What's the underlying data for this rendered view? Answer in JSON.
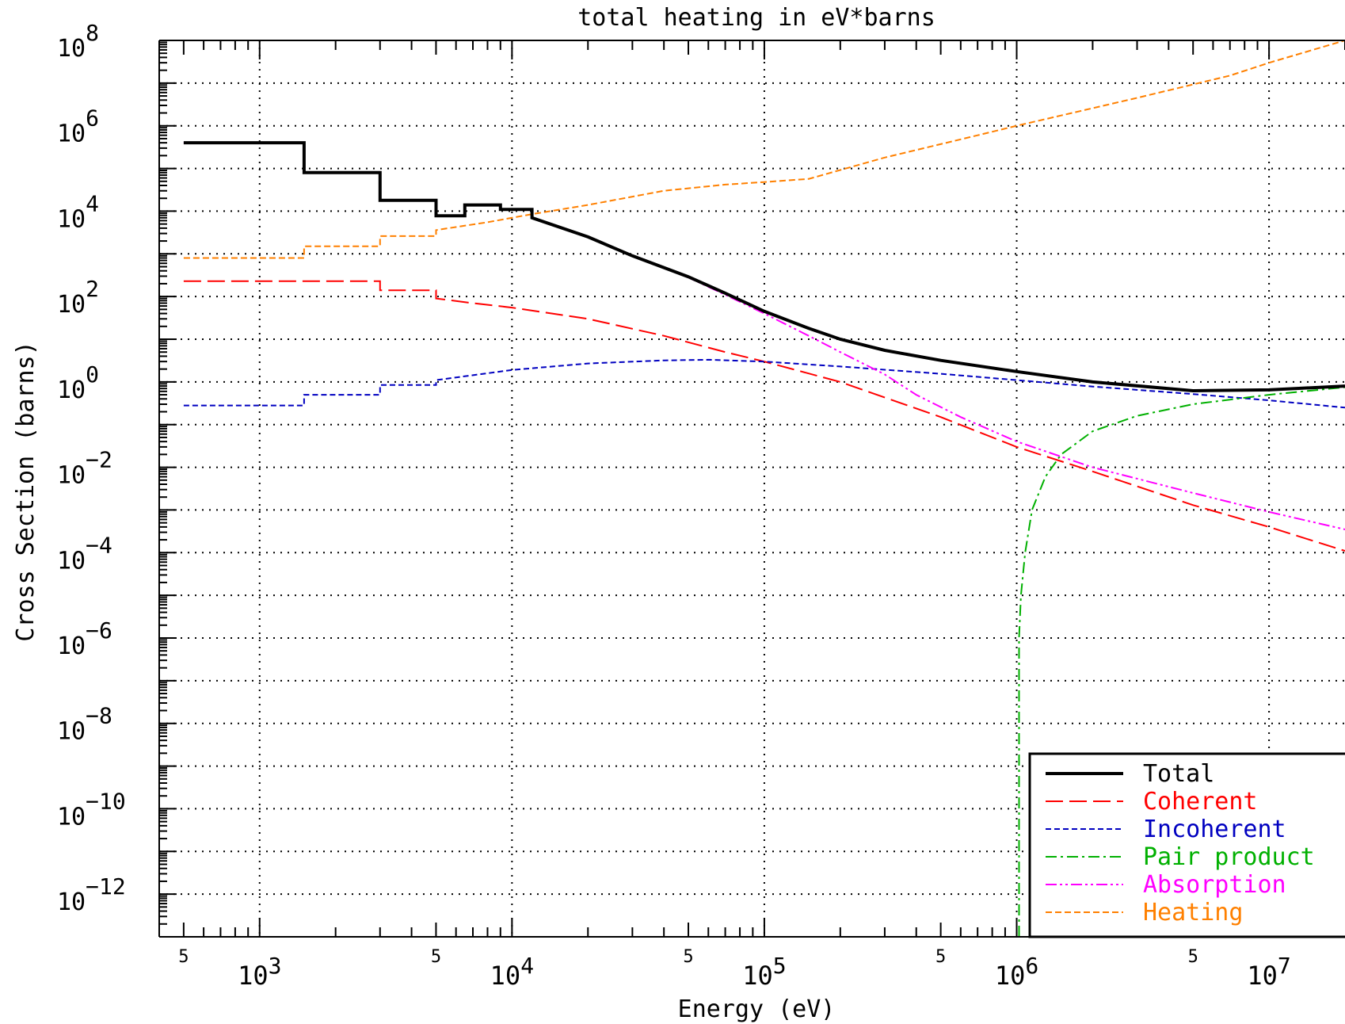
{
  "chart_data": {
    "type": "line",
    "title": "total heating in eV*barns",
    "xlabel": "Energy (eV)",
    "ylabel": "Cross Section (barns)",
    "x_scale": "log",
    "y_scale": "log",
    "xlim": [
      400,
      20000000
    ],
    "ylim": [
      1e-13,
      100000000.0
    ],
    "grid": true,
    "legend_position": "bottom-right",
    "x_tick_labels": [
      {
        "value": 500,
        "base": "5",
        "exp": ""
      },
      {
        "value": 1000,
        "base": "10",
        "exp": "3"
      },
      {
        "value": 5000,
        "base": "5",
        "exp": ""
      },
      {
        "value": 10000,
        "base": "10",
        "exp": "4"
      },
      {
        "value": 50000,
        "base": "5",
        "exp": ""
      },
      {
        "value": 100000,
        "base": "10",
        "exp": "5"
      },
      {
        "value": 500000,
        "base": "5",
        "exp": ""
      },
      {
        "value": 1000000,
        "base": "10",
        "exp": "6"
      },
      {
        "value": 5000000,
        "base": "5",
        "exp": ""
      },
      {
        "value": 10000000,
        "base": "10",
        "exp": "7"
      }
    ],
    "y_tick_labels": [
      {
        "value": 100000000.0,
        "base": "10",
        "exp": "8"
      },
      {
        "value": 1000000.0,
        "base": "10",
        "exp": "6"
      },
      {
        "value": 10000.0,
        "base": "10",
        "exp": "4"
      },
      {
        "value": 100.0,
        "base": "10",
        "exp": "2"
      },
      {
        "value": 1,
        "base": "10",
        "exp": "0"
      },
      {
        "value": 0.01,
        "base": "10",
        "exp": "−2"
      },
      {
        "value": 0.0001,
        "base": "10",
        "exp": "−4"
      },
      {
        "value": 1e-06,
        "base": "10",
        "exp": "−6"
      },
      {
        "value": 1e-08,
        "base": "10",
        "exp": "−8"
      },
      {
        "value": 1e-10,
        "base": "10",
        "exp": "−10"
      },
      {
        "value": 1e-12,
        "base": "10",
        "exp": "−12"
      }
    ],
    "series": [
      {
        "name": "Heating",
        "color": "#ff8000",
        "dash": "dashed",
        "points": [
          [
            500,
            800
          ],
          [
            1500,
            800
          ],
          [
            1500,
            1500
          ],
          [
            3000,
            1500
          ],
          [
            3000,
            2600
          ],
          [
            5000,
            2600
          ],
          [
            5000,
            3600
          ],
          [
            8000,
            5500
          ],
          [
            12000,
            8500
          ],
          [
            20000,
            14000
          ],
          [
            40000,
            30000
          ],
          [
            70000,
            42000
          ],
          [
            100000,
            48000
          ],
          [
            150000,
            57000
          ],
          [
            300000,
            180000
          ],
          [
            700000,
            600000
          ],
          [
            1000000,
            1000000
          ],
          [
            3000000,
            4500000
          ],
          [
            7000000,
            15000000
          ],
          [
            10000000,
            30000000
          ],
          [
            20000000,
            100000000
          ]
        ]
      },
      {
        "name": "Coherent",
        "color": "#ff0000",
        "dash": "long-dashed",
        "points": [
          [
            500,
            230
          ],
          [
            3000,
            230
          ],
          [
            3000,
            140
          ],
          [
            5000,
            140
          ],
          [
            5000,
            90
          ],
          [
            7000,
            70
          ],
          [
            10000,
            55
          ],
          [
            20000,
            30
          ],
          [
            40000,
            12
          ],
          [
            70000,
            5
          ],
          [
            100000,
            3
          ],
          [
            200000,
            1
          ],
          [
            500000,
            0.15
          ],
          [
            1000000,
            0.03
          ],
          [
            2000000,
            0.008
          ],
          [
            5000000,
            0.0013
          ],
          [
            10000000,
            0.0004
          ],
          [
            20000000,
            0.00011
          ]
        ]
      },
      {
        "name": "Incoherent",
        "color": "#0000c0",
        "dash": "short-dashed",
        "points": [
          [
            500,
            0.28
          ],
          [
            1500,
            0.28
          ],
          [
            1500,
            0.5
          ],
          [
            3000,
            0.5
          ],
          [
            3000,
            0.85
          ],
          [
            5000,
            0.85
          ],
          [
            5000,
            1.1
          ],
          [
            10000,
            1.9
          ],
          [
            20000,
            2.7
          ],
          [
            40000,
            3.2
          ],
          [
            60000,
            3.3
          ],
          [
            100000,
            3.0
          ],
          [
            200000,
            2.3
          ],
          [
            500000,
            1.55
          ],
          [
            1000000,
            1.1
          ],
          [
            2000000,
            0.78
          ],
          [
            5000000,
            0.52
          ],
          [
            10000000,
            0.37
          ],
          [
            20000000,
            0.25
          ]
        ]
      },
      {
        "name": "Pair product",
        "color": "#00b000",
        "dash": "dash-dot",
        "points": [
          [
            1022000,
            1e-13
          ],
          [
            1022000,
            1e-06
          ],
          [
            1040000,
            1e-05
          ],
          [
            1080000,
            0.0001
          ],
          [
            1150000,
            0.001
          ],
          [
            1300000,
            0.006
          ],
          [
            1500000,
            0.02
          ],
          [
            2000000,
            0.07
          ],
          [
            3000000,
            0.16
          ],
          [
            5000000,
            0.3
          ],
          [
            10000000,
            0.5
          ],
          [
            20000000,
            0.75
          ]
        ]
      },
      {
        "name": "Absorption",
        "color": "#ff00ff",
        "dash": "dash-dot-dot",
        "points": [
          [
            500,
            400000
          ],
          [
            1500,
            400000
          ],
          [
            1500,
            80000
          ],
          [
            3000,
            80000
          ],
          [
            3000,
            18000
          ],
          [
            5000,
            18000
          ],
          [
            5000,
            7800
          ],
          [
            6500,
            7800
          ],
          [
            6500,
            14000
          ],
          [
            9000,
            14000
          ],
          [
            9000,
            11000
          ],
          [
            12000,
            11000
          ],
          [
            12000,
            7000
          ],
          [
            20000,
            2500
          ],
          [
            30000,
            900
          ],
          [
            50000,
            280
          ],
          [
            70000,
            110
          ],
          [
            100000,
            40
          ],
          [
            150000,
            12
          ],
          [
            200000,
            5
          ],
          [
            300000,
            1.5
          ],
          [
            400000,
            0.5
          ],
          [
            600000,
            0.15
          ],
          [
            1000000,
            0.04
          ],
          [
            2000000,
            0.01
          ],
          [
            5000000,
            0.0025
          ],
          [
            10000000,
            0.0009
          ],
          [
            20000000,
            0.00035
          ]
        ]
      },
      {
        "name": "Total",
        "color": "#000000",
        "dash": "solid",
        "points": [
          [
            500,
            400000
          ],
          [
            1500,
            400000
          ],
          [
            1500,
            80000
          ],
          [
            3000,
            80000
          ],
          [
            3000,
            18000
          ],
          [
            5000,
            18000
          ],
          [
            5000,
            7800
          ],
          [
            6500,
            7800
          ],
          [
            6500,
            14000
          ],
          [
            9000,
            14000
          ],
          [
            9000,
            11000
          ],
          [
            12000,
            11000
          ],
          [
            12000,
            7000
          ],
          [
            20000,
            2500
          ],
          [
            30000,
            900
          ],
          [
            50000,
            290
          ],
          [
            70000,
            120
          ],
          [
            100000,
            45
          ],
          [
            150000,
            18
          ],
          [
            200000,
            10
          ],
          [
            300000,
            5.5
          ],
          [
            500000,
            3.2
          ],
          [
            1000000,
            1.75
          ],
          [
            2000000,
            1.0
          ],
          [
            5000000,
            0.62
          ],
          [
            10000000,
            0.65
          ],
          [
            20000000,
            0.8
          ]
        ]
      }
    ]
  }
}
